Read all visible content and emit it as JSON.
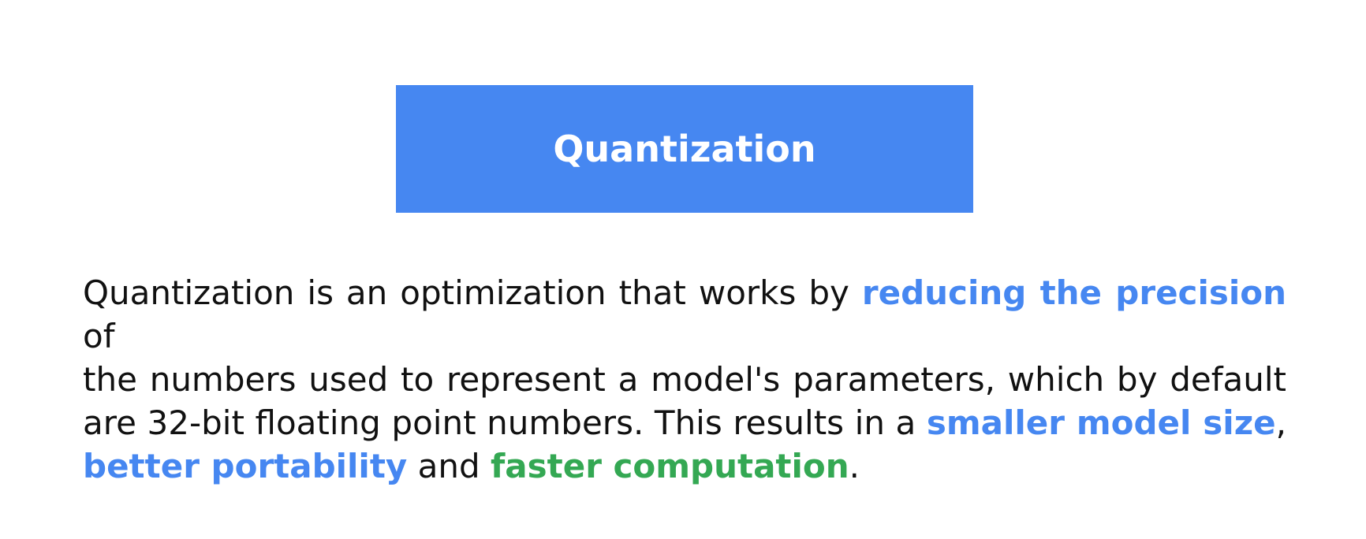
{
  "title": {
    "text": "Quantization",
    "background_color": "#4687f1",
    "text_color": "#ffffff"
  },
  "body": {
    "text_color": "#111111",
    "highlight_blue": "#4687f1",
    "highlight_green": "#34a853",
    "lines": [
      {
        "seg1": "Quantization is an optimization that works by ",
        "hl1": "reducing the precision",
        "seg2": " of"
      },
      {
        "seg1": "the numbers used to represent a model's parameters, which by default"
      },
      {
        "seg1": "are 32-bit floating point numbers. This results in a ",
        "hl1": "smaller model size",
        "seg2": ","
      },
      {
        "hl1": "better portability",
        "seg1": " and ",
        "hl2": "faster computation",
        "seg2": "."
      }
    ]
  }
}
